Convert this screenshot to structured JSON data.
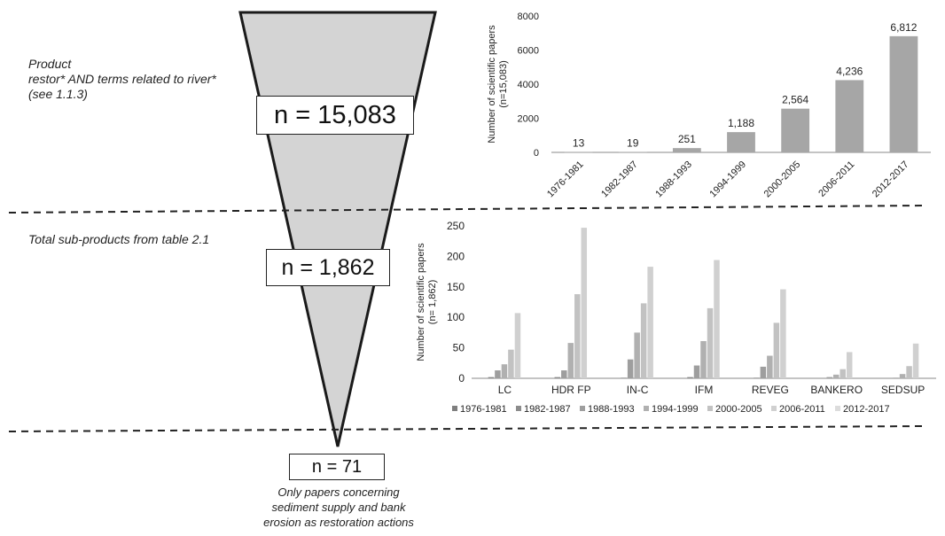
{
  "funnel": {
    "stage1_note": [
      "Product",
      "restor* AND terms related to river*",
      "(see 1.1.3)"
    ],
    "stage1_count": "n = 15,083",
    "stage2_note": "Total sub-products from table 2.1",
    "stage2_count": "n = 1,862",
    "stage3_count": "n = 71",
    "stage3_note": [
      "Only papers concerning",
      "sediment supply and bank",
      "erosion as restoration actions"
    ]
  },
  "colors": {
    "funnel_fill": "#d4d4d4",
    "top_bars": "#a6a6a6",
    "series": [
      "#7f7f7f",
      "#8c8c8c",
      "#9e9e9e",
      "#b0b0b0",
      "#c2c2c2",
      "#d0d0d0",
      "#dcdcdc"
    ]
  },
  "chart_data": [
    {
      "type": "bar",
      "categories": [
        "1976-1981",
        "1982-1987",
        "1988-1993",
        "1994-1999",
        "2000-2005",
        "2006-2011",
        "2012-2017"
      ],
      "values": [
        13,
        19,
        251,
        1188,
        2564,
        4236,
        6812
      ],
      "data_labels": [
        "13",
        "19",
        "251",
        "1,188",
        "2,564",
        "4,236",
        "6,812"
      ],
      "ylabel": [
        "Number of scientific papers",
        "(n=15,083)"
      ],
      "ylim": [
        0,
        8000
      ],
      "yticks": [
        0,
        2000,
        4000,
        6000,
        8000
      ],
      "grid": false
    },
    {
      "type": "bar",
      "categories": [
        "LC",
        "HDR FP",
        "IN-C",
        "IFM",
        "REVEG",
        "BANKERO",
        "SEDSUP"
      ],
      "series": [
        {
          "name": "1976-1981",
          "values": [
            0,
            0,
            0,
            0,
            0,
            0,
            0
          ]
        },
        {
          "name": "1982-1987",
          "values": [
            2,
            2,
            1,
            2,
            1,
            0,
            0
          ]
        },
        {
          "name": "1988-1993",
          "values": [
            13,
            13,
            31,
            21,
            19,
            2,
            1
          ]
        },
        {
          "name": "1994-1999",
          "values": [
            23,
            58,
            75,
            61,
            37,
            6,
            7
          ]
        },
        {
          "name": "2000-2005",
          "values": [
            47,
            138,
            123,
            115,
            91,
            15,
            20
          ]
        },
        {
          "name": "2006-2011",
          "values": [
            107,
            247,
            183,
            194,
            146,
            43,
            57
          ]
        },
        {
          "name": "2012-2017",
          "values": [
            0,
            0,
            0,
            0,
            0,
            0,
            0
          ]
        }
      ],
      "ylabel": [
        "Number of scientific papers",
        "(n= 1,862)"
      ],
      "ylim": [
        0,
        250
      ],
      "yticks": [
        0,
        50,
        100,
        150,
        200,
        250
      ],
      "legend_position": "bottom",
      "grid": false
    }
  ]
}
